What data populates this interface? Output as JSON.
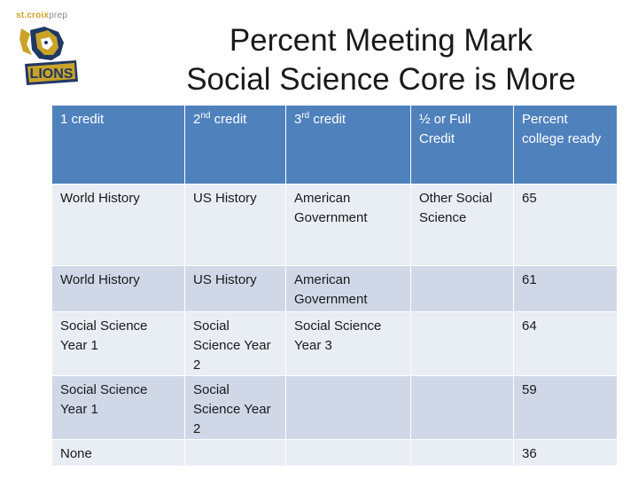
{
  "logo": {
    "brand_main": "st.croix",
    "brand_sub": "prep",
    "mascot_text": "LIONS"
  },
  "title": {
    "line1": "Percent Meeting Mark",
    "line2": "Social Science Core is More"
  },
  "table": {
    "headers": [
      {
        "base": "1 credit",
        "sup": "",
        "rest": ""
      },
      {
        "base": "2",
        "sup": "nd",
        "rest": " credit"
      },
      {
        "base": "3",
        "sup": "rd",
        "rest": " credit"
      },
      {
        "base": "½ or Full Credit",
        "sup": "",
        "rest": ""
      },
      {
        "base": "Percent college ready",
        "sup": "",
        "rest": ""
      }
    ],
    "rows": [
      [
        "World History",
        "US History",
        "American Government",
        "Other Social Science",
        "65"
      ],
      [
        "World History",
        "US History",
        "American Government",
        "",
        "61"
      ],
      [
        "Social Science Year 1",
        "Social Science Year 2",
        "Social Science Year 3",
        "",
        "64"
      ],
      [
        "Social Science Year 1",
        "Social Science Year 2",
        "",
        "",
        "59"
      ],
      [
        "None",
        "",
        "",
        "",
        "36"
      ]
    ]
  },
  "colors": {
    "header_bg": "#4f81bd",
    "row_light": "#e9edf4",
    "row_dark": "#d0d8e8",
    "logo_gold": "#c9a227",
    "logo_navy": "#1f3864"
  }
}
